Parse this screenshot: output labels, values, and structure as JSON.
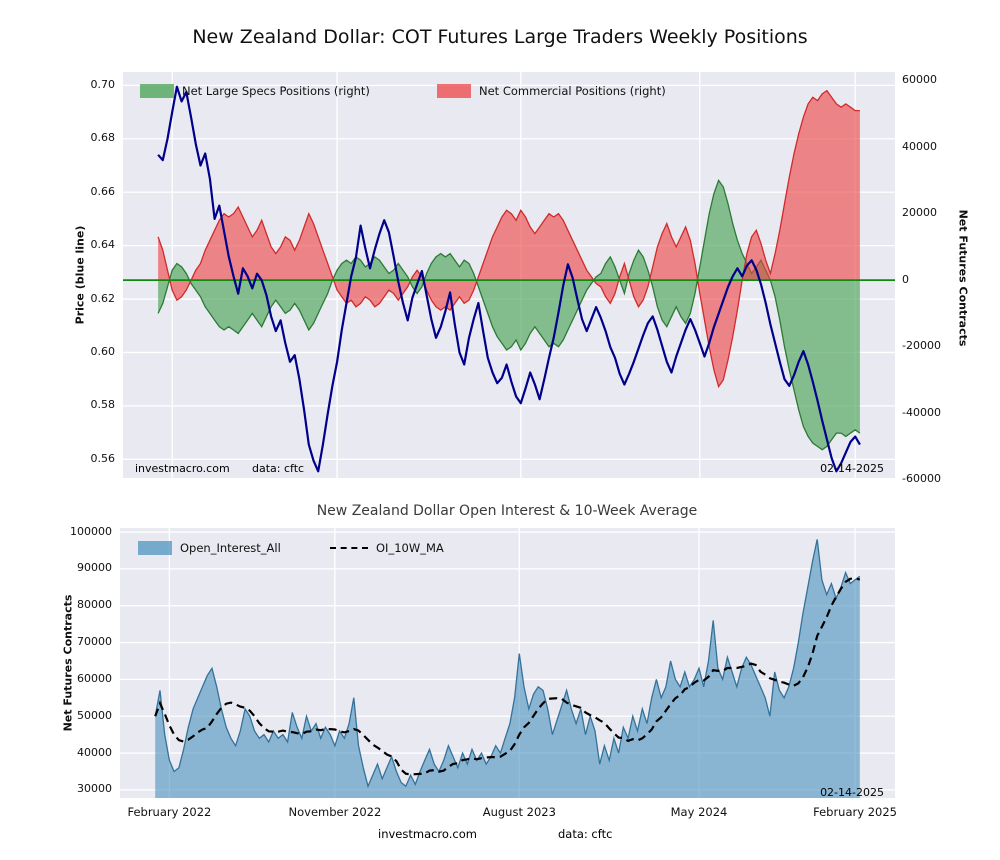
{
  "title": "New Zealand Dollar: COT Futures Large Traders Weekly Positions",
  "watermark": {
    "site": "investmacro.com",
    "source": "data: cftc",
    "date": "02-14-2025"
  },
  "colors": {
    "price_line": "#00008b",
    "specs_fill": "#44a04f",
    "specs_edge": "#2c7a36",
    "commercial_fill": "#ee4444",
    "commercial_edge": "#cf2b2b",
    "zero_line": "#0f8a0f",
    "open_interest_fill": "#4f94bf",
    "open_interest_edge": "#33729b",
    "ma_line": "#000000",
    "panel_background": "#e9e9f1",
    "grid": "#ffffff"
  },
  "chart_data": [
    {
      "type": "line",
      "title": "New Zealand Dollar: COT Futures Large Traders Weekly Positions",
      "ylabel_left": "Price (blue line)",
      "ylabel_right": "Net Futures Contracts",
      "ylim_left": [
        0.553,
        0.705
      ],
      "ylim_right": [
        -59500,
        62600
      ],
      "yticks_left": [
        "0.70",
        "0.68",
        "0.66",
        "0.64",
        "0.62",
        "0.60",
        "0.58",
        "0.56"
      ],
      "yticks_right": [
        "60000",
        "40000",
        "20000",
        "0",
        "-20000",
        "-40000",
        "-60000"
      ],
      "grid": true,
      "legend_position": "upper left, 2 columns, inside plot",
      "legend": [
        {
          "label": "Net Large Specs Positions (right)",
          "color": "#44a04f"
        },
        {
          "label": "Net Commercial Positions (right)",
          "color": "#ee4444"
        }
      ],
      "annotations": [
        "investmacro.com",
        "data: cftc",
        "02-14-2025"
      ],
      "series": [
        {
          "name": "Price",
          "axis": "left",
          "type": "line",
          "color": "#00008b",
          "values": [
            0.674,
            0.672,
            0.68,
            0.69,
            0.6995,
            0.694,
            0.6975,
            0.688,
            0.678,
            0.67,
            0.6745,
            0.665,
            0.65,
            0.655,
            0.6455,
            0.636,
            0.6285,
            0.622,
            0.6315,
            0.6285,
            0.624,
            0.6295,
            0.627,
            0.6215,
            0.6135,
            0.608,
            0.612,
            0.6035,
            0.5965,
            0.599,
            0.59,
            0.5785,
            0.5655,
            0.5595,
            0.5555,
            0.5655,
            0.577,
            0.5875,
            0.5965,
            0.6085,
            0.6185,
            0.6285,
            0.6355,
            0.6475,
            0.639,
            0.6315,
            0.6385,
            0.6445,
            0.6495,
            0.645,
            0.636,
            0.6265,
            0.6185,
            0.612,
            0.6205,
            0.6255,
            0.6305,
            0.6215,
            0.6125,
            0.6055,
            0.6095,
            0.6155,
            0.6225,
            0.6105,
            0.6,
            0.5955,
            0.6055,
            0.6125,
            0.6185,
            0.608,
            0.598,
            0.5925,
            0.5885,
            0.5905,
            0.5955,
            0.589,
            0.5835,
            0.581,
            0.5865,
            0.5925,
            0.588,
            0.5825,
            0.59,
            0.598,
            0.6055,
            0.615,
            0.625,
            0.633,
            0.628,
            0.62,
            0.6125,
            0.608,
            0.6125,
            0.617,
            0.613,
            0.608,
            0.602,
            0.598,
            0.592,
            0.588,
            0.592,
            0.5965,
            0.6015,
            0.6065,
            0.611,
            0.6135,
            0.6085,
            0.6025,
            0.5965,
            0.5925,
            0.5985,
            0.6035,
            0.6085,
            0.6125,
            0.6085,
            0.6035,
            0.5985,
            0.6035,
            0.6095,
            0.6145,
            0.6195,
            0.6245,
            0.6285,
            0.6315,
            0.6285,
            0.6325,
            0.6345,
            0.631,
            0.6255,
            0.6185,
            0.6105,
            0.6035,
            0.5965,
            0.59,
            0.5875,
            0.5915,
            0.5965,
            0.6005,
            0.5955,
            0.589,
            0.582,
            0.5745,
            0.5675,
            0.5605,
            0.5555,
            0.5585,
            0.5625,
            0.5665,
            0.5685,
            0.5655
          ]
        },
        {
          "name": "Net Large Specs Positions",
          "axis": "right",
          "type": "area",
          "color": "#44a04f",
          "values": [
            -10000,
            -7000,
            -2000,
            3000,
            5000,
            4000,
            2000,
            -1000,
            -3000,
            -5000,
            -8000,
            -10000,
            -12000,
            -14000,
            -15000,
            -14000,
            -15000,
            -16000,
            -14000,
            -12000,
            -10000,
            -12000,
            -14000,
            -11000,
            -8000,
            -6000,
            -8000,
            -10000,
            -9000,
            -7000,
            -9000,
            -12000,
            -15000,
            -13000,
            -10000,
            -7000,
            -4000,
            0,
            3000,
            5000,
            6000,
            5000,
            7000,
            6000,
            4000,
            5000,
            7000,
            6000,
            4000,
            2000,
            3000,
            5000,
            3000,
            1000,
            -2000,
            -4000,
            -2000,
            2000,
            5000,
            7000,
            8000,
            7000,
            8000,
            6000,
            4000,
            6000,
            5000,
            2000,
            -2000,
            -6000,
            -10000,
            -14000,
            -17000,
            -19000,
            -21000,
            -20000,
            -18000,
            -21000,
            -19000,
            -16000,
            -14000,
            -16000,
            -18000,
            -20000,
            -19000,
            -20000,
            -18000,
            -15000,
            -12000,
            -9000,
            -6000,
            -3000,
            -1000,
            1000,
            2000,
            5000,
            7000,
            4000,
            0,
            -4000,
            2000,
            6000,
            9000,
            7000,
            3000,
            -2000,
            -8000,
            -12000,
            -14000,
            -11000,
            -8000,
            -11000,
            -13000,
            -10000,
            -4000,
            4000,
            12000,
            20000,
            26000,
            30000,
            28000,
            23000,
            17000,
            12000,
            8000,
            5000,
            2000,
            4000,
            6000,
            3000,
            0,
            -5000,
            -12000,
            -20000,
            -27000,
            -33000,
            -39000,
            -44000,
            -47000,
            -49000,
            -50000,
            -51000,
            -50000,
            -48000,
            -46000,
            -46000,
            -47000,
            -46000,
            -45000,
            -46000
          ]
        },
        {
          "name": "Net Commercial Positions",
          "axis": "right",
          "type": "area",
          "color": "#ee4444",
          "values": [
            13000,
            9000,
            3000,
            -3000,
            -6000,
            -5000,
            -3000,
            0,
            3000,
            5000,
            9000,
            12000,
            15000,
            18000,
            20000,
            19000,
            20000,
            22000,
            19000,
            16000,
            13000,
            15000,
            18000,
            14000,
            10000,
            8000,
            10000,
            13000,
            12000,
            9000,
            12000,
            16000,
            20000,
            17000,
            13000,
            9000,
            5000,
            1000,
            -3000,
            -5000,
            -7000,
            -6000,
            -8000,
            -7000,
            -5000,
            -6000,
            -8000,
            -7000,
            -5000,
            -3000,
            -4000,
            -6000,
            -4000,
            -2000,
            1000,
            3000,
            1000,
            -3000,
            -6000,
            -8000,
            -9000,
            -8000,
            -9000,
            -7000,
            -5000,
            -7000,
            -6000,
            -3000,
            1000,
            5000,
            9000,
            13000,
            16000,
            19000,
            21000,
            20000,
            18000,
            21000,
            19000,
            16000,
            14000,
            16000,
            18000,
            20000,
            19000,
            20000,
            18000,
            15000,
            12000,
            9000,
            6000,
            3000,
            1000,
            -1000,
            -2000,
            -5000,
            -7000,
            -4000,
            1000,
            5000,
            0,
            -5000,
            -8000,
            -6000,
            -2000,
            4000,
            10000,
            14000,
            17000,
            13000,
            10000,
            13000,
            16000,
            12000,
            5000,
            -4000,
            -12000,
            -20000,
            -27000,
            -32000,
            -30000,
            -24000,
            -17000,
            -9000,
            0,
            8000,
            13000,
            15000,
            11000,
            6000,
            2000,
            8000,
            15000,
            23000,
            31000,
            38000,
            44000,
            49000,
            53000,
            55000,
            54000,
            56000,
            57000,
            55000,
            53000,
            52000,
            53000,
            52000,
            51000,
            51000
          ]
        }
      ]
    },
    {
      "type": "area",
      "title": "New Zealand Dollar Open Interest & 10-Week Average",
      "ylabel": "Net Futures Contracts",
      "ylim": [
        27800,
        101100
      ],
      "yticks": [
        "100000",
        "90000",
        "80000",
        "70000",
        "60000",
        "50000",
        "40000",
        "30000"
      ],
      "x_tick_labels": [
        "February 2022",
        "November 2022",
        "August 2023",
        "May 2024",
        "February 2025"
      ],
      "x_tick_idx": [
        3,
        38,
        77,
        115,
        148
      ],
      "grid": true,
      "legend_position": "upper left inside plot",
      "legend": [
        {
          "label": "Open_Interest_All",
          "color": "#4f94bf"
        },
        {
          "label": "OI_10W_MA",
          "style": "dashed-black"
        }
      ],
      "annotations": [
        "02-14-2025"
      ],
      "series": [
        {
          "name": "Open_Interest_All",
          "type": "area",
          "color": "#4f94bf",
          "values": [
            50000,
            57000,
            45000,
            38000,
            35000,
            36000,
            41000,
            47000,
            52000,
            55000,
            58000,
            61000,
            63000,
            58000,
            52000,
            47000,
            44000,
            42000,
            46000,
            52000,
            50000,
            46000,
            44000,
            45000,
            43000,
            46000,
            44000,
            45000,
            43000,
            51000,
            47000,
            44000,
            50000,
            46000,
            48000,
            44000,
            47000,
            45000,
            42000,
            46000,
            44000,
            48000,
            55000,
            42000,
            36000,
            31000,
            34000,
            37000,
            33000,
            36000,
            39000,
            35000,
            32000,
            31000,
            34000,
            31500,
            35000,
            38000,
            41000,
            37000,
            35000,
            38000,
            42000,
            39000,
            36000,
            40000,
            37000,
            41000,
            38000,
            40000,
            37000,
            39000,
            42000,
            40000,
            44000,
            48000,
            55000,
            67000,
            58000,
            52000,
            56000,
            58000,
            57000,
            52000,
            45000,
            49000,
            53000,
            57000,
            52000,
            48000,
            52000,
            45000,
            50000,
            46000,
            37000,
            42000,
            38000,
            44000,
            40000,
            47000,
            44000,
            50000,
            46000,
            52000,
            48000,
            55000,
            60000,
            55000,
            58000,
            65000,
            60000,
            58000,
            62000,
            58000,
            60000,
            63000,
            58000,
            65000,
            76000,
            63000,
            60000,
            66000,
            62000,
            58000,
            63000,
            66000,
            64000,
            61000,
            58000,
            55000,
            50000,
            62000,
            57000,
            55000,
            58000,
            63000,
            70000,
            78000,
            85000,
            92000,
            98000,
            87000,
            83000,
            86000,
            82000,
            85000,
            89000,
            86000,
            87000,
            88000
          ]
        },
        {
          "name": "OI_10W_MA",
          "type": "line-dashed",
          "color": "#000000",
          "derived_from": "Open_Interest_All",
          "window": 10
        }
      ]
    }
  ]
}
